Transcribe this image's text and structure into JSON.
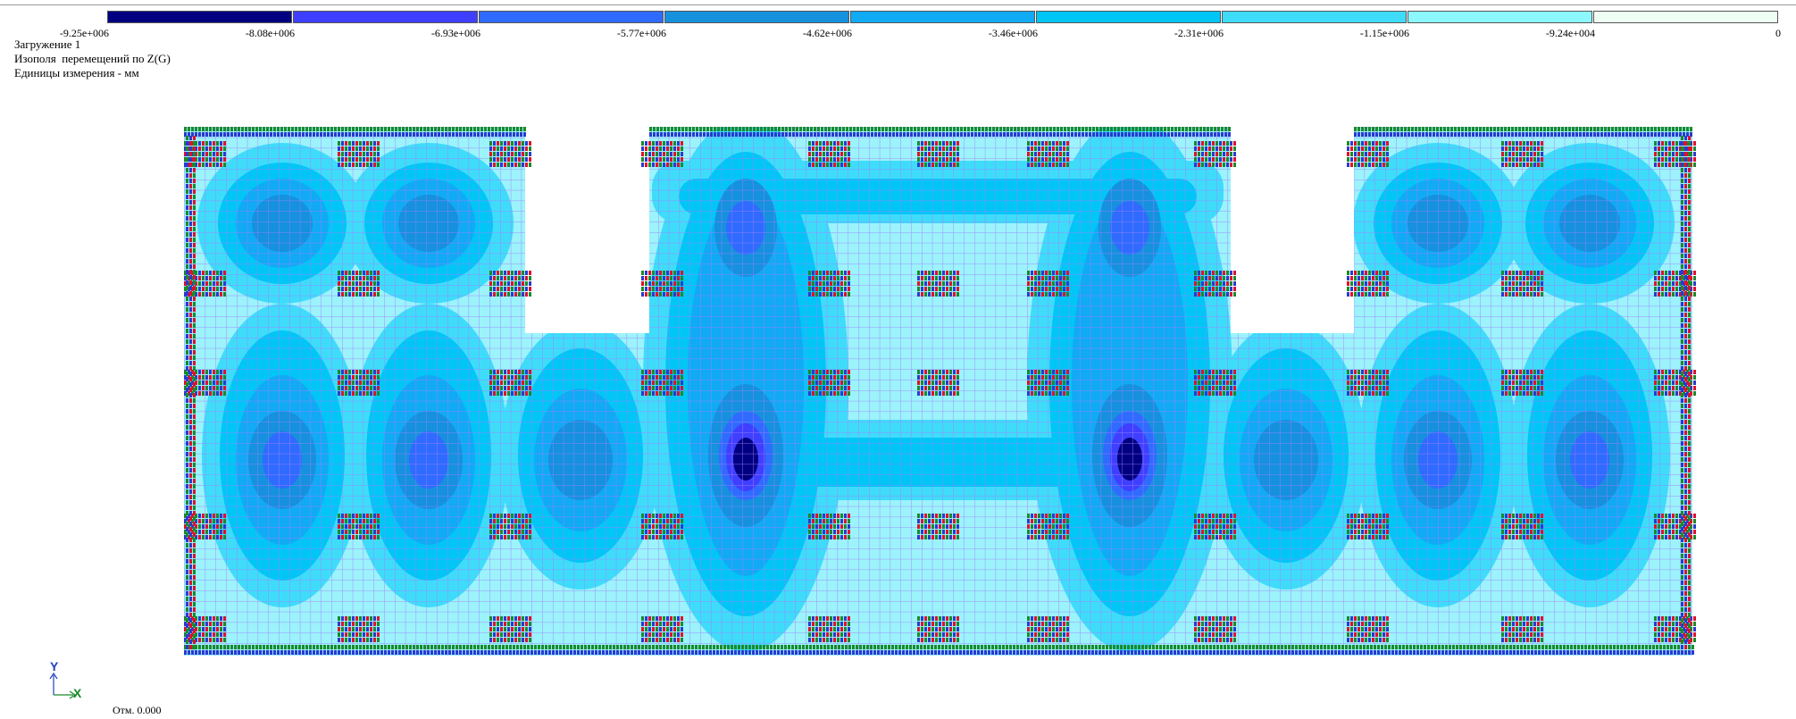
{
  "legend": {
    "colors": [
      "#000080",
      "#3f3fff",
      "#2f6bff",
      "#1591de",
      "#11aaf4",
      "#00c6f6",
      "#3fdcfa",
      "#8cf8fd",
      "#effef3"
    ],
    "labels": [
      "-9.25e+006",
      "-8.08e+006",
      "-6.93e+006",
      "-5.77e+006",
      "-4.62e+006",
      "-3.46e+006",
      "-2.31e+006",
      "-1.15e+006",
      "-9.24e+004",
      "0"
    ]
  },
  "info": {
    "load": "Загружение 1",
    "field": "Изополя  перемещений по Z(G)",
    "units": "Единицы измерения - мм"
  },
  "axis": {
    "y_label": "Y",
    "x_label": "X"
  },
  "elevation": "Отм. 0.000",
  "plot_colors": {
    "background": "#9cf3fb",
    "band_light": "#3fdcfa",
    "band_mid": "#00c6f6",
    "band_strong": "#11aaf4",
    "band_deep": "#1591de",
    "band_deeper": "#2f6bff",
    "band_core": "#3f3fff",
    "band_max": "#000080",
    "mesh": "#9f7fff",
    "support_red": "#e0102a",
    "support_green": "#1a8a2a",
    "support_blue": "#2a3acf"
  }
}
